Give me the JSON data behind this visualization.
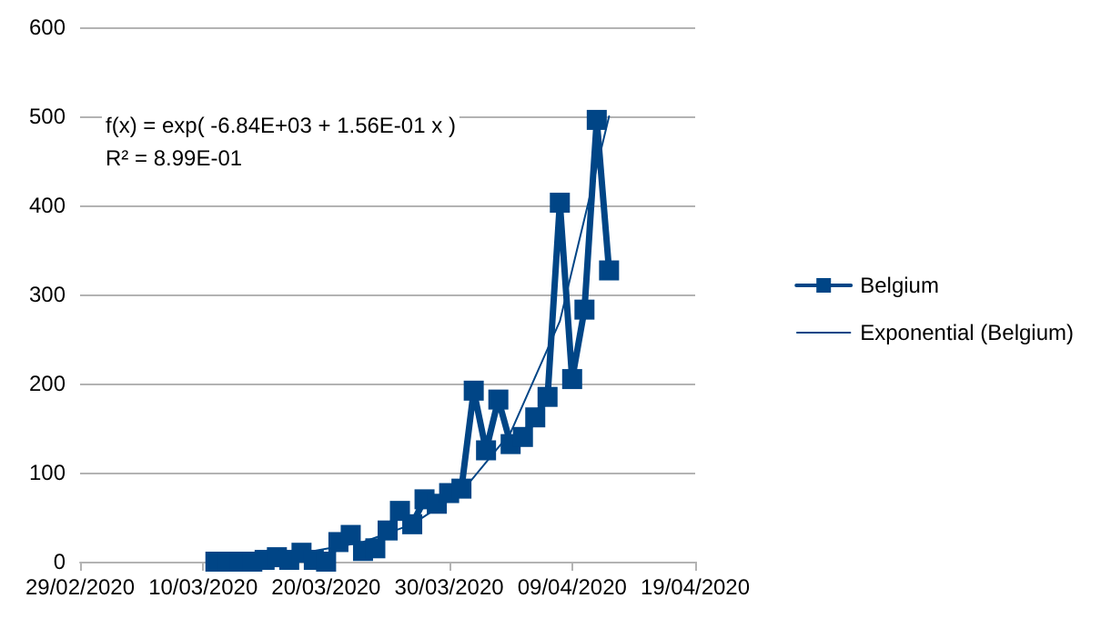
{
  "chart_data": {
    "type": "line",
    "x": [
      "2020-03-11",
      "2020-03-12",
      "2020-03-13",
      "2020-03-14",
      "2020-03-15",
      "2020-03-16",
      "2020-03-17",
      "2020-03-18",
      "2020-03-19",
      "2020-03-20",
      "2020-03-21",
      "2020-03-22",
      "2020-03-23",
      "2020-03-24",
      "2020-03-25",
      "2020-03-26",
      "2020-03-27",
      "2020-03-28",
      "2020-03-29",
      "2020-03-30",
      "2020-03-31",
      "2020-04-01",
      "2020-04-02",
      "2020-04-03",
      "2020-04-04",
      "2020-04-05",
      "2020-04-06",
      "2020-04-07",
      "2020-04-08",
      "2020-04-09",
      "2020-04-10",
      "2020-04-11",
      "2020-04-12"
    ],
    "series": [
      {
        "name": "Belgium",
        "color": "#004586",
        "marker": "square",
        "values": [
          0,
          0,
          0,
          0,
          2,
          5,
          2,
          10,
          2,
          0,
          22,
          30,
          12,
          15,
          35,
          57,
          42,
          70,
          65,
          77,
          82,
          192,
          125,
          182,
          132,
          140,
          162,
          185,
          403,
          205,
          283,
          496,
          327
        ]
      },
      {
        "name": "Exponential (Belgium)",
        "color": "#004586",
        "marker": "none",
        "x": [
          "2020-03-11",
          "2020-03-15",
          "2020-03-19",
          "2020-03-23",
          "2020-03-27",
          "2020-03-31",
          "2020-04-04",
          "2020-04-08",
          "2020-04-12"
        ],
        "values": [
          3,
          6,
          12,
          22,
          42,
          78,
          145,
          270,
          500
        ]
      }
    ],
    "xlim": [
      "2020-02-29",
      "2020-04-19"
    ],
    "xticks": [
      {
        "value": "2020-02-29",
        "label": "29/02/2020"
      },
      {
        "value": "2020-03-10",
        "label": "10/03/2020"
      },
      {
        "value": "2020-03-20",
        "label": "20/03/2020"
      },
      {
        "value": "2020-03-30",
        "label": "30/03/2020"
      },
      {
        "value": "2020-04-09",
        "label": "09/04/2020"
      },
      {
        "value": "2020-04-19",
        "label": "19/04/2020"
      }
    ],
    "ylim": [
      0,
      600
    ],
    "yticks": [
      0,
      100,
      200,
      300,
      400,
      500,
      600
    ],
    "grid": "y",
    "legend": "right",
    "line_style": "solid",
    "annotations": [
      "f(x) = exp( -6.84E+03 + 1.56E-01 x )",
      "R² = 8.99E-01"
    ]
  }
}
